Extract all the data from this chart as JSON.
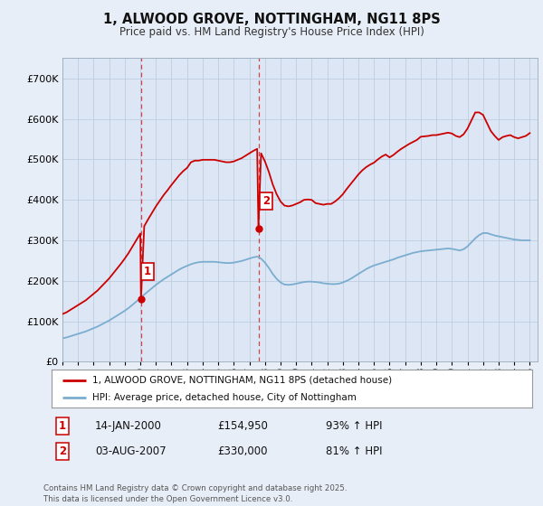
{
  "title": "1, ALWOOD GROVE, NOTTINGHAM, NG11 8PS",
  "subtitle": "Price paid vs. HM Land Registry's House Price Index (HPI)",
  "xlim_start": 1995.0,
  "xlim_end": 2025.5,
  "ylim": [
    0,
    750000
  ],
  "yticks": [
    0,
    100000,
    200000,
    300000,
    400000,
    500000,
    600000,
    700000
  ],
  "ytick_labels": [
    "£0",
    "£100K",
    "£200K",
    "£300K",
    "£400K",
    "£500K",
    "£600K",
    "£700K"
  ],
  "xtick_years": [
    1995,
    1996,
    1997,
    1998,
    1999,
    2000,
    2001,
    2002,
    2003,
    2004,
    2005,
    2006,
    2007,
    2008,
    2009,
    2010,
    2011,
    2012,
    2013,
    2014,
    2015,
    2016,
    2017,
    2018,
    2019,
    2020,
    2021,
    2022,
    2023,
    2024,
    2025
  ],
  "purchase1_x": 2000.04,
  "purchase1_y": 154950,
  "purchase1_label": "1",
  "purchase2_x": 2007.58,
  "purchase2_y": 330000,
  "purchase2_label": "2",
  "vline1_x": 2000.04,
  "vline2_x": 2007.58,
  "red_color": "#cc0000",
  "blue_color": "#7aadcf",
  "vline_color": "#cc0000",
  "bg_color": "#e8eef8",
  "plot_bg": "#dce6f5",
  "legend1_label": "1, ALWOOD GROVE, NOTTINGHAM, NG11 8PS (detached house)",
  "legend2_label": "HPI: Average price, detached house, City of Nottingham",
  "footer": "Contains HM Land Registry data © Crown copyright and database right 2025.\nThis data is licensed under the Open Government Licence v3.0.",
  "blue_line_data_x": [
    1995.0,
    1995.25,
    1995.5,
    1995.75,
    1996.0,
    1996.25,
    1996.5,
    1996.75,
    1997.0,
    1997.25,
    1997.5,
    1997.75,
    1998.0,
    1998.25,
    1998.5,
    1998.75,
    1999.0,
    1999.25,
    1999.5,
    1999.75,
    2000.0,
    2000.25,
    2000.5,
    2000.75,
    2001.0,
    2001.25,
    2001.5,
    2001.75,
    2002.0,
    2002.25,
    2002.5,
    2002.75,
    2003.0,
    2003.25,
    2003.5,
    2003.75,
    2004.0,
    2004.25,
    2004.5,
    2004.75,
    2005.0,
    2005.25,
    2005.5,
    2005.75,
    2006.0,
    2006.25,
    2006.5,
    2006.75,
    2007.0,
    2007.25,
    2007.5,
    2007.75,
    2008.0,
    2008.25,
    2008.5,
    2008.75,
    2009.0,
    2009.25,
    2009.5,
    2009.75,
    2010.0,
    2010.25,
    2010.5,
    2010.75,
    2011.0,
    2011.25,
    2011.5,
    2011.75,
    2012.0,
    2012.25,
    2012.5,
    2012.75,
    2013.0,
    2013.25,
    2013.5,
    2013.75,
    2014.0,
    2014.25,
    2014.5,
    2014.75,
    2015.0,
    2015.25,
    2015.5,
    2015.75,
    2016.0,
    2016.25,
    2016.5,
    2016.75,
    2017.0,
    2017.25,
    2017.5,
    2017.75,
    2018.0,
    2018.25,
    2018.5,
    2018.75,
    2019.0,
    2019.25,
    2019.5,
    2019.75,
    2020.0,
    2020.25,
    2020.5,
    2020.75,
    2021.0,
    2021.25,
    2021.5,
    2021.75,
    2022.0,
    2022.25,
    2022.5,
    2022.75,
    2023.0,
    2023.25,
    2023.5,
    2023.75,
    2024.0,
    2024.25,
    2024.5,
    2024.75,
    2025.0
  ],
  "blue_line_data_y": [
    58000,
    60000,
    63000,
    66000,
    69000,
    72000,
    75000,
    79000,
    83000,
    87000,
    92000,
    97000,
    102000,
    108000,
    114000,
    120000,
    126000,
    133000,
    141000,
    149000,
    157000,
    166000,
    174000,
    182000,
    190000,
    197000,
    204000,
    210000,
    216000,
    222000,
    228000,
    233000,
    237000,
    241000,
    244000,
    246000,
    247000,
    247000,
    247000,
    247000,
    246000,
    245000,
    244000,
    244000,
    245000,
    247000,
    249000,
    252000,
    255000,
    258000,
    260000,
    255000,
    245000,
    232000,
    217000,
    205000,
    196000,
    191000,
    190000,
    191000,
    193000,
    195000,
    197000,
    198000,
    198000,
    197000,
    196000,
    194000,
    193000,
    192000,
    192000,
    193000,
    196000,
    200000,
    205000,
    211000,
    217000,
    223000,
    229000,
    234000,
    238000,
    241000,
    244000,
    247000,
    250000,
    253000,
    257000,
    260000,
    263000,
    266000,
    269000,
    271000,
    273000,
    274000,
    275000,
    276000,
    277000,
    278000,
    279000,
    280000,
    279000,
    277000,
    275000,
    278000,
    285000,
    295000,
    305000,
    313000,
    318000,
    318000,
    315000,
    312000,
    310000,
    308000,
    306000,
    304000,
    302000,
    301000,
    300000,
    300000,
    300000
  ],
  "red_line_data_x": [
    1995.0,
    1995.25,
    1995.5,
    1995.75,
    1996.0,
    1996.25,
    1996.5,
    1996.75,
    1997.0,
    1997.25,
    1997.5,
    1997.75,
    1998.0,
    1998.25,
    1998.5,
    1998.75,
    1999.0,
    1999.25,
    1999.5,
    1999.75,
    2000.0,
    2000.04,
    2000.25,
    2000.5,
    2000.75,
    2001.0,
    2001.25,
    2001.5,
    2001.75,
    2002.0,
    2002.25,
    2002.5,
    2002.75,
    2003.0,
    2003.25,
    2003.5,
    2003.75,
    2004.0,
    2004.25,
    2004.5,
    2004.75,
    2005.0,
    2005.25,
    2005.5,
    2005.75,
    2006.0,
    2006.25,
    2006.5,
    2006.75,
    2007.0,
    2007.25,
    2007.5,
    2007.58,
    2007.75,
    2008.0,
    2008.25,
    2008.5,
    2008.75,
    2009.0,
    2009.25,
    2009.5,
    2009.75,
    2010.0,
    2010.25,
    2010.5,
    2010.75,
    2011.0,
    2011.25,
    2011.5,
    2011.75,
    2012.0,
    2012.25,
    2012.5,
    2012.75,
    2013.0,
    2013.25,
    2013.5,
    2013.75,
    2014.0,
    2014.25,
    2014.5,
    2014.75,
    2015.0,
    2015.25,
    2015.5,
    2015.75,
    2016.0,
    2016.25,
    2016.5,
    2016.75,
    2017.0,
    2017.25,
    2017.5,
    2017.75,
    2018.0,
    2018.25,
    2018.5,
    2018.75,
    2019.0,
    2019.25,
    2019.5,
    2019.75,
    2020.0,
    2020.25,
    2020.5,
    2020.75,
    2021.0,
    2021.25,
    2021.5,
    2021.75,
    2022.0,
    2022.25,
    2022.5,
    2022.75,
    2023.0,
    2023.25,
    2023.5,
    2023.75,
    2024.0,
    2024.25,
    2024.5,
    2024.75,
    2025.0
  ],
  "red_line_data_y": [
    118000,
    122000,
    128000,
    134000,
    140000,
    146000,
    152000,
    160000,
    168000,
    176000,
    186000,
    196000,
    206000,
    218000,
    230000,
    242000,
    255000,
    269000,
    285000,
    301000,
    317000,
    154950,
    335000,
    352000,
    368000,
    384000,
    398000,
    412000,
    424000,
    437000,
    449000,
    461000,
    471000,
    479000,
    493000,
    497000,
    497000,
    499000,
    499000,
    499000,
    499000,
    497000,
    495000,
    493000,
    493000,
    495000,
    499000,
    503000,
    509000,
    515000,
    521000,
    526000,
    330000,
    515000,
    495000,
    469000,
    438000,
    414000,
    396000,
    386000,
    384000,
    386000,
    390000,
    394000,
    400000,
    401000,
    400000,
    392000,
    390000,
    388000,
    390000,
    390000,
    396000,
    404000,
    414000,
    427000,
    439000,
    451000,
    463000,
    473000,
    481000,
    487000,
    492000,
    500000,
    507000,
    512000,
    505000,
    511000,
    519000,
    526000,
    532000,
    538000,
    543000,
    548000,
    556000,
    557000,
    558000,
    560000,
    560000,
    562000,
    564000,
    566000,
    564000,
    558000,
    555000,
    562000,
    576000,
    596000,
    616000,
    616000,
    610000,
    590000,
    570000,
    558000,
    548000,
    555000,
    558000,
    560000,
    555000,
    552000,
    555000,
    558000,
    565000
  ]
}
